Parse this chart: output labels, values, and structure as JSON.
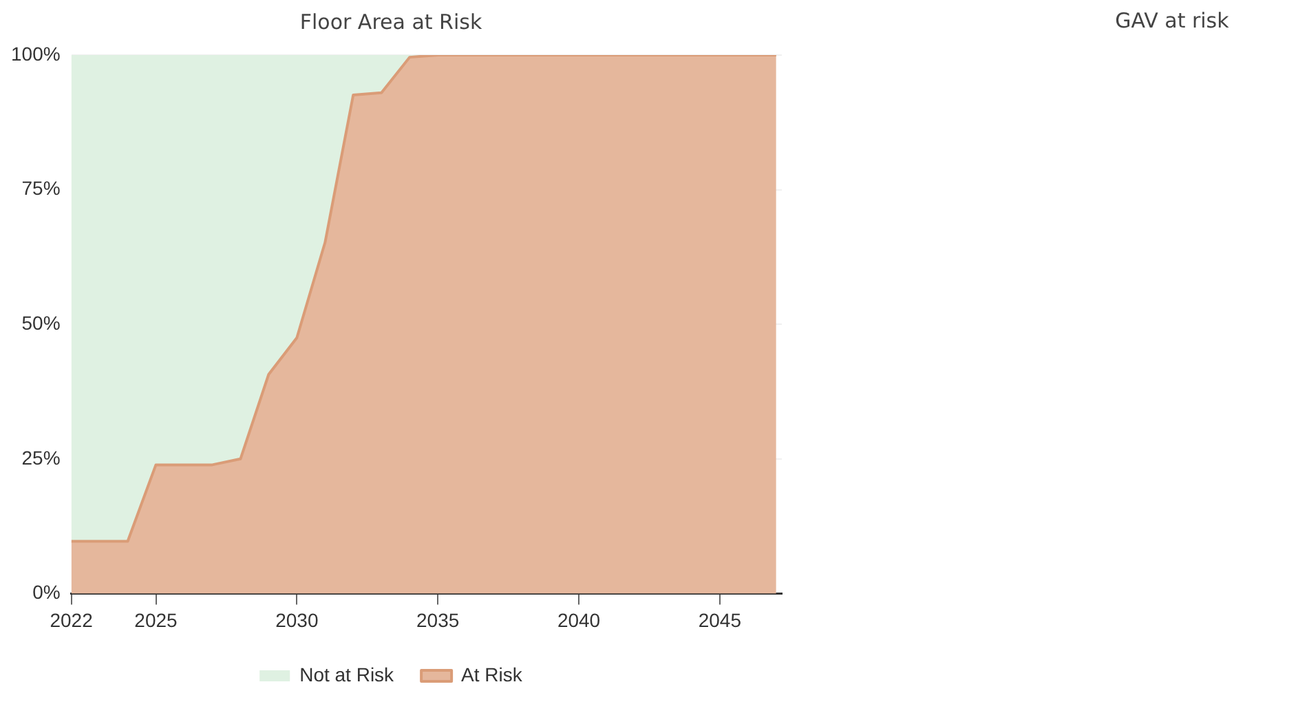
{
  "chart_data": [
    {
      "type": "area",
      "title": "Floor Area at Risk",
      "stacked": true,
      "x": [
        2022,
        2023,
        2024,
        2025,
        2026,
        2027,
        2028,
        2029,
        2030,
        2031,
        2032,
        2033,
        2034,
        2035,
        2036,
        2037,
        2038,
        2039,
        2040,
        2041,
        2042,
        2043,
        2044,
        2045,
        2046,
        2047
      ],
      "series": [
        {
          "name": "At Risk",
          "color": "#e5b79c",
          "values": [
            9.7,
            9.7,
            9.7,
            23.9,
            23.9,
            23.9,
            25.0,
            40.7,
            47.5,
            65.2,
            92.6,
            93.0,
            99.6,
            100,
            100,
            100,
            100,
            100,
            100,
            100,
            100,
            100,
            100,
            100,
            100,
            100
          ]
        },
        {
          "name": "Not at Risk",
          "color": "#dff1e2",
          "values": [
            90.3,
            90.3,
            90.3,
            76.1,
            76.1,
            76.1,
            75.0,
            59.3,
            52.5,
            34.8,
            7.4,
            7.0,
            0.4,
            0,
            0,
            0,
            0,
            0,
            0,
            0,
            0,
            0,
            0,
            0,
            0,
            0
          ]
        }
      ],
      "xlim": [
        2022,
        2047.2
      ],
      "xticks": [
        2022,
        2025,
        2030,
        2035,
        2040,
        2045
      ],
      "ylim": [
        0,
        100
      ],
      "yticks": [
        {
          "value": 0,
          "label": "0%"
        },
        {
          "value": 25,
          "label": "25%"
        },
        {
          "value": 50,
          "label": "50%"
        },
        {
          "value": 75,
          "label": "75%"
        },
        {
          "value": 100,
          "label": "100%"
        }
      ],
      "grid": "y",
      "legend": "bottom",
      "marker": "none"
    },
    {
      "type": "other",
      "title": "GAV at risk"
    }
  ]
}
